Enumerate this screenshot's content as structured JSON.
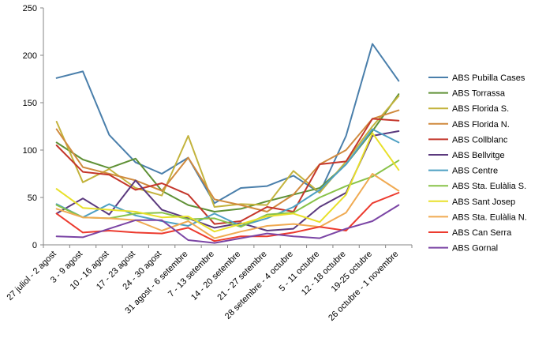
{
  "chart_data": {
    "type": "line",
    "x": [
      "27 juliol - 2 agost",
      "3 - 9 agost",
      "10 - 16 agost",
      "17 - 23 agost",
      "24 - 30 agost",
      "31 agost - 6 setembre",
      "7 - 13 setembre",
      "14 - 20 setembre",
      "21 - 27 setembre",
      "28 setembre - 4 octubre",
      "5 - 11 octubre",
      "12 - 18 octubre",
      "19-25 octubre",
      "26 octubre - 1 novembre"
    ],
    "ylim": [
      0,
      250
    ],
    "yticks": [
      0,
      50,
      100,
      150,
      200,
      250
    ],
    "grid": false,
    "legend": "right",
    "series": [
      {
        "name": "ABS Pubilla Cases",
        "color": "#4a7fab",
        "values": [
          176,
          183,
          116,
          87,
          75,
          92,
          44,
          60,
          62,
          73,
          55,
          115,
          212,
          173
        ]
      },
      {
        "name": "ABS Torrassa",
        "color": "#5f9136",
        "values": [
          108,
          90,
          81,
          91,
          57,
          42,
          35,
          38,
          46,
          53,
          60,
          85,
          120,
          159
        ]
      },
      {
        "name": "ABS Florida S.",
        "color": "#c3b33d",
        "values": [
          130,
          66,
          80,
          60,
          52,
          115,
          40,
          43,
          42,
          78,
          55,
          88,
          125,
          157
        ]
      },
      {
        "name": "ABS Florida N.",
        "color": "#d08a3e",
        "values": [
          122,
          82,
          75,
          68,
          57,
          92,
          48,
          42,
          35,
          53,
          85,
          100,
          133,
          142
        ]
      },
      {
        "name": "ABS Collblanc",
        "color": "#c4362b",
        "values": [
          105,
          77,
          74,
          58,
          65,
          53,
          22,
          25,
          40,
          35,
          85,
          88,
          133,
          131
        ]
      },
      {
        "name": "ABS Bellvitge",
        "color": "#5b3a7e",
        "values": [
          33,
          49,
          32,
          68,
          37,
          28,
          18,
          23,
          15,
          17,
          40,
          55,
          115,
          120
        ]
      },
      {
        "name": "ABS Centre",
        "color": "#4ea0c3",
        "values": [
          43,
          29,
          43,
          31,
          25,
          20,
          33,
          20,
          28,
          40,
          58,
          85,
          122,
          108
        ]
      },
      {
        "name": "ABS Sta. Eulàlia S.",
        "color": "#88c248",
        "values": [
          42,
          29,
          28,
          33,
          34,
          27,
          28,
          19,
          32,
          34,
          50,
          62,
          72,
          89
        ]
      },
      {
        "name": "ABS Sant Josep",
        "color": "#e8e02a",
        "values": [
          59,
          39,
          37,
          35,
          29,
          30,
          14,
          22,
          30,
          33,
          24,
          53,
          118,
          79
        ]
      },
      {
        "name": "ABS Sta. Eulàlia N.",
        "color": "#f0aa52",
        "values": [
          38,
          29,
          28,
          26,
          15,
          25,
          7,
          14,
          20,
          22,
          19,
          34,
          75,
          57
        ]
      },
      {
        "name": "ABS Can Serra",
        "color": "#ec3b2f",
        "values": [
          33,
          13,
          15,
          13,
          12,
          18,
          4,
          9,
          9,
          13,
          19,
          15,
          44,
          55
        ]
      },
      {
        "name": "ABS Gornal",
        "color": "#7b45a5",
        "values": [
          9,
          8,
          17,
          26,
          26,
          5,
          2,
          7,
          12,
          9,
          7,
          17,
          25,
          42
        ]
      }
    ]
  }
}
